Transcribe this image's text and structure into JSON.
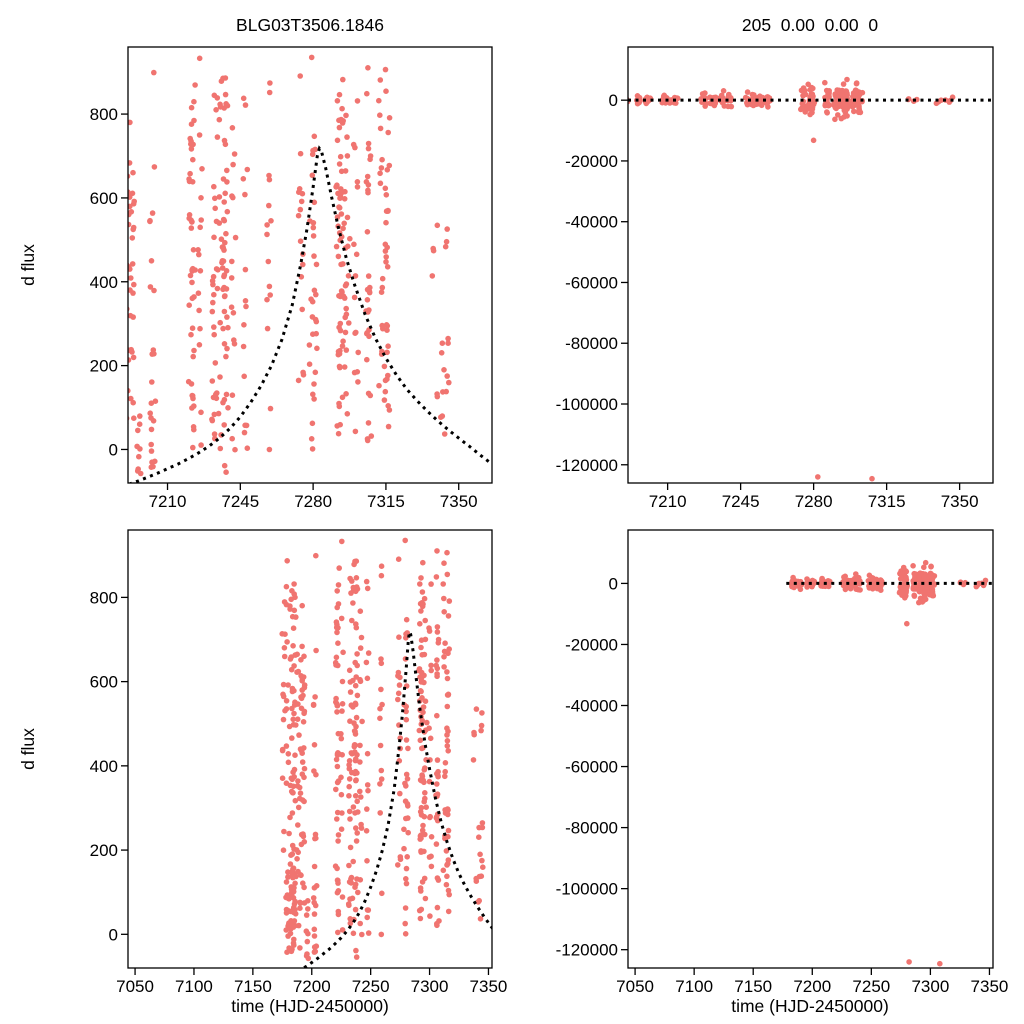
{
  "figure": {
    "background": "#ffffff",
    "point_color": "#f07470",
    "curve_color": "#000000",
    "axis_color": "#000000"
  },
  "seed": 1846,
  "chart_data": [
    {
      "id": "flux-zoom",
      "type": "scatter",
      "title": "BLG03T3506.1846",
      "ylabel": "d flux",
      "xlabel": null,
      "xlim": [
        7191,
        7366
      ],
      "ylim": [
        -80,
        960
      ],
      "xticks": [
        7210,
        7245,
        7280,
        7315,
        7350
      ],
      "yticks": [
        0,
        200,
        400,
        600,
        800
      ],
      "dataset": "flux",
      "show_curve": true,
      "zero_line": false,
      "legend": null,
      "grid": false
    },
    {
      "id": "residual-zoom",
      "type": "scatter",
      "title": "205  0.00  0.00  0",
      "ylabel": null,
      "xlabel": null,
      "xlim": [
        7191,
        7366
      ],
      "ylim": [
        -126000,
        17500
      ],
      "xticks": [
        7210,
        7245,
        7280,
        7315,
        7350
      ],
      "yticks": [
        0,
        -20000,
        -40000,
        -60000,
        -80000,
        -100000,
        -120000
      ],
      "dataset": "residual",
      "show_curve": false,
      "zero_line": true,
      "zero_line_from": null,
      "legend": null,
      "grid": false
    },
    {
      "id": "flux-full",
      "type": "scatter",
      "title": null,
      "ylabel": "d flux",
      "xlabel": "time (HJD-2450000)",
      "xlim": [
        7044,
        7353
      ],
      "ylim": [
        -80,
        960
      ],
      "xticks": [
        7050,
        7100,
        7150,
        7200,
        7250,
        7300,
        7350
      ],
      "yticks": [
        0,
        200,
        400,
        600,
        800
      ],
      "dataset": "flux",
      "show_curve": true,
      "zero_line": false,
      "legend": null,
      "grid": false
    },
    {
      "id": "residual-full",
      "type": "scatter",
      "title": null,
      "ylabel": null,
      "xlabel": "time (HJD-2450000)",
      "xlim": [
        7044,
        7353
      ],
      "ylim": [
        -126000,
        17500
      ],
      "xticks": [
        7050,
        7100,
        7150,
        7200,
        7250,
        7300,
        7350
      ],
      "yticks": [
        0,
        -20000,
        -40000,
        -60000,
        -80000,
        -100000,
        -120000
      ],
      "dataset": "residual",
      "show_curve": false,
      "zero_line": true,
      "zero_line_from": 7178,
      "legend": null,
      "grid": false
    }
  ],
  "datasets": {
    "flux": {
      "description": "difference-flux photometry, dense nightly columns of points spanning the full flux range",
      "clusters": [
        {
          "x_min": 7176,
          "x_max": 7215,
          "columns": 11,
          "pts_per_column": 15,
          "y_min": -80,
          "y_max": 950
        },
        {
          "x_min": 7178,
          "x_max": 7206,
          "columns": 7,
          "pts_per_column": 9,
          "y_min": -85,
          "y_max": 170
        },
        {
          "x_min": 7218,
          "x_max": 7259,
          "columns": 13,
          "pts_per_column": 15,
          "y_min": -80,
          "y_max": 950
        },
        {
          "x_min": 7271,
          "x_max": 7321,
          "columns": 14,
          "pts_per_column": 16,
          "y_min": -60,
          "y_max": 955
        },
        {
          "x_min": 7324,
          "x_max": 7347,
          "columns": 7,
          "pts_per_column": 3,
          "y_min": -40,
          "y_max": 720
        }
      ],
      "outliers": [],
      "model_curve": [
        [
          7188,
          -88
        ],
        [
          7192,
          -82
        ],
        [
          7196,
          -75
        ],
        [
          7200,
          -67
        ],
        [
          7205,
          -57
        ],
        [
          7210,
          -46
        ],
        [
          7215,
          -35
        ],
        [
          7220,
          -22
        ],
        [
          7225,
          -8
        ],
        [
          7230,
          8
        ],
        [
          7235,
          27
        ],
        [
          7240,
          50
        ],
        [
          7245,
          78
        ],
        [
          7250,
          112
        ],
        [
          7255,
          152
        ],
        [
          7260,
          200
        ],
        [
          7265,
          262
        ],
        [
          7270,
          345
        ],
        [
          7274,
          440
        ],
        [
          7277,
          525
        ],
        [
          7280,
          625
        ],
        [
          7282,
          700
        ],
        [
          7283,
          718
        ],
        [
          7284,
          712
        ],
        [
          7286,
          672
        ],
        [
          7289,
          600
        ],
        [
          7292,
          532
        ],
        [
          7296,
          455
        ],
        [
          7300,
          392
        ],
        [
          7305,
          322
        ],
        [
          7310,
          265
        ],
        [
          7315,
          218
        ],
        [
          7320,
          178
        ],
        [
          7325,
          144
        ],
        [
          7330,
          116
        ],
        [
          7335,
          91
        ],
        [
          7340,
          68
        ],
        [
          7345,
          47
        ],
        [
          7350,
          27
        ],
        [
          7355,
          8
        ],
        [
          7360,
          -12
        ],
        [
          7366,
          -35
        ]
      ]
    },
    "residual": {
      "description": "fit residuals clustered around zero with two extreme negative outliers near the bottom of the frame",
      "clusters": [
        {
          "x_min": 7176,
          "x_max": 7215,
          "columns": 11,
          "pts_per_column": 10,
          "sigma": 650,
          "mean": 0
        },
        {
          "x_min": 7218,
          "x_max": 7259,
          "columns": 13,
          "pts_per_column": 10,
          "sigma": 1050,
          "mean": 0
        },
        {
          "x_min": 7271,
          "x_max": 7321,
          "columns": 14,
          "pts_per_column": 13,
          "sigma": 2500,
          "mean": 0
        },
        {
          "x_min": 7324,
          "x_max": 7347,
          "columns": 6,
          "pts_per_column": 2,
          "sigma": 600,
          "mean": 0
        }
      ],
      "outliers": [
        [
          7282,
          -124000
        ],
        [
          7308,
          -124600
        ],
        [
          7280,
          -13200
        ],
        [
          7296,
          6800
        ]
      ],
      "model_curve": null
    }
  }
}
